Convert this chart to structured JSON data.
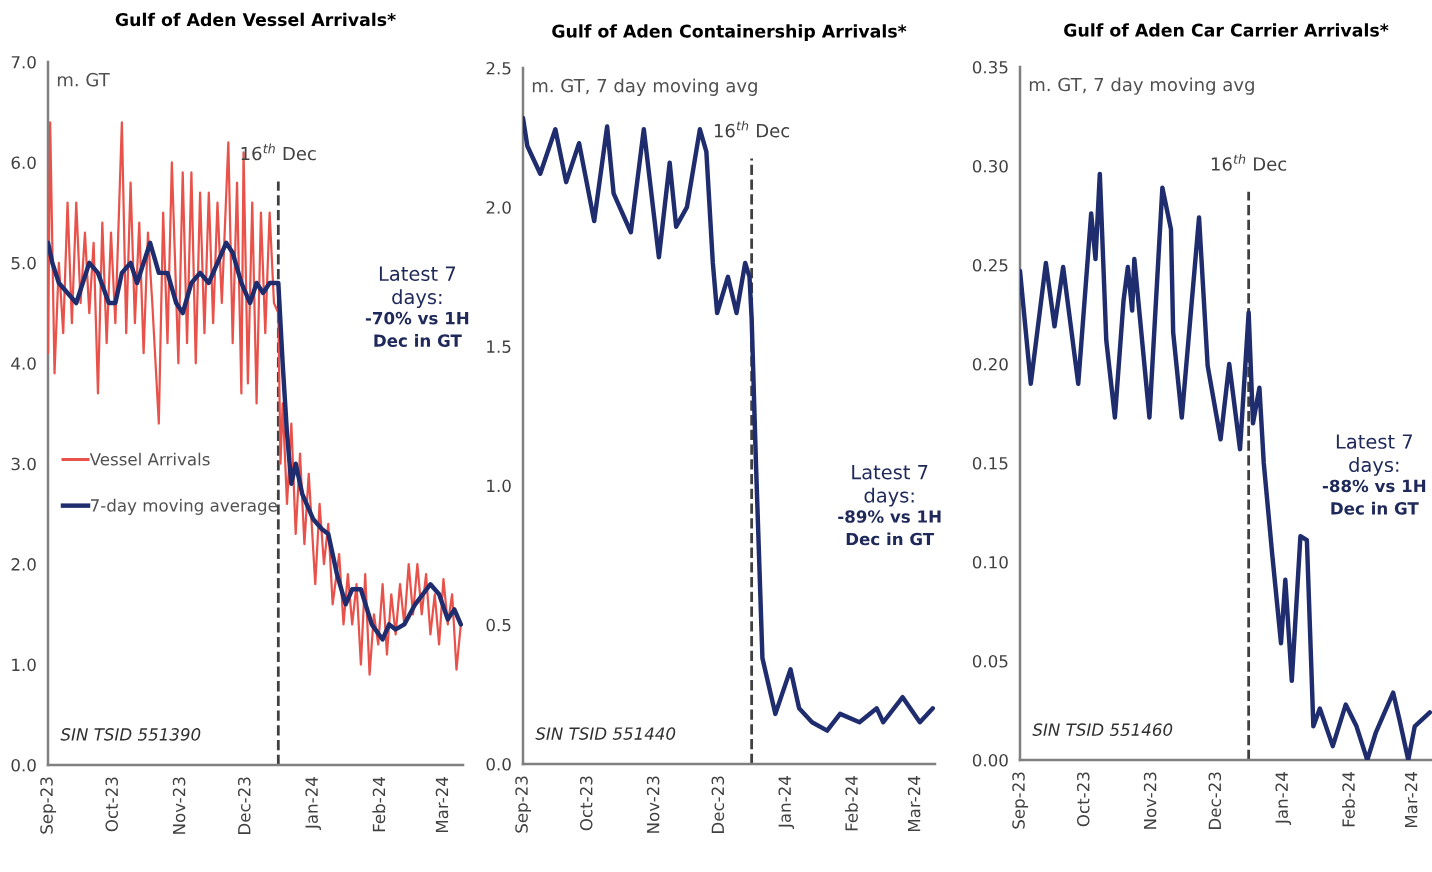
{
  "chart_data": [
    {
      "type": "line",
      "title": "Gulf of Aden Vessel Arrivals*",
      "ylabel": "m. GT",
      "legend": "center left",
      "grid": false,
      "xlim": [
        "2023-09-01",
        "2024-03-10"
      ],
      "xticks": [
        {
          "value": "2023-09-01",
          "label": "Sep-23"
        },
        {
          "value": "2023-10-01",
          "label": "Oct-23"
        },
        {
          "value": "2023-11-01",
          "label": "Nov-23"
        },
        {
          "value": "2023-12-01",
          "label": "Dec-23"
        },
        {
          "value": "2024-01-01",
          "label": "Jan-24"
        },
        {
          "value": "2024-02-01",
          "label": "Feb-24"
        },
        {
          "value": "2024-03-01",
          "label": "Mar-24"
        }
      ],
      "ylim": [
        0,
        7
      ],
      "yticks": [
        {
          "value": 0,
          "label": "0.0"
        },
        {
          "value": 1,
          "label": "1.0"
        },
        {
          "value": 2,
          "label": "2.0"
        },
        {
          "value": 3,
          "label": "3.0"
        },
        {
          "value": 4,
          "label": "4.0"
        },
        {
          "value": 5,
          "label": "5.0"
        },
        {
          "value": 6,
          "label": "6.0"
        },
        {
          "value": 7,
          "label": "7.0"
        }
      ],
      "ref_lines": [
        {
          "axis": "x",
          "value": "2023-12-16",
          "label": "16$^{th}$ Dec",
          "line_style": "dashed",
          "color": "#404040"
        }
      ],
      "annotations": [
        "Latest 7\ndays:",
        "-70% vs 1H\nDec in GT",
        "SIN TSID 551390"
      ],
      "series": [
        {
          "name": "Vessel Arrivals",
          "color": "#e8524a",
          "x": [
            "2023-09-01",
            "2023-09-02",
            "2023-09-04",
            "2023-09-06",
            "2023-09-08",
            "2023-09-10",
            "2023-09-12",
            "2023-09-14",
            "2023-09-16",
            "2023-09-18",
            "2023-09-20",
            "2023-09-22",
            "2023-09-24",
            "2023-09-26",
            "2023-09-28",
            "2023-09-30",
            "2023-10-02",
            "2023-10-05",
            "2023-10-07",
            "2023-10-09",
            "2023-10-11",
            "2023-10-13",
            "2023-10-15",
            "2023-10-17",
            "2023-10-19",
            "2023-10-22",
            "2023-10-24",
            "2023-10-26",
            "2023-10-28",
            "2023-10-31",
            "2023-11-02",
            "2023-11-04",
            "2023-11-06",
            "2023-11-08",
            "2023-11-10",
            "2023-11-12",
            "2023-11-14",
            "2023-11-16",
            "2023-11-18",
            "2023-11-20",
            "2023-11-23",
            "2023-11-25",
            "2023-11-27",
            "2023-11-29",
            "2023-11-30",
            "2023-12-02",
            "2023-12-04",
            "2023-12-06",
            "2023-12-08",
            "2023-12-10",
            "2023-12-12",
            "2023-12-14",
            "2023-12-16",
            "2023-12-17",
            "2023-12-18",
            "2023-12-20",
            "2023-12-22",
            "2023-12-24",
            "2023-12-26",
            "2023-12-28",
            "2023-12-30",
            "2024-01-02",
            "2024-01-04",
            "2024-01-06",
            "2024-01-08",
            "2024-01-10",
            "2024-01-13",
            "2024-01-15",
            "2024-01-17",
            "2024-01-19",
            "2024-01-21",
            "2024-01-23",
            "2024-01-25",
            "2024-01-27",
            "2024-01-29",
            "2024-01-31",
            "2024-02-02",
            "2024-02-04",
            "2024-02-06",
            "2024-02-08",
            "2024-02-10",
            "2024-02-12",
            "2024-02-14",
            "2024-02-16",
            "2024-02-18",
            "2024-02-20",
            "2024-02-22",
            "2024-02-24",
            "2024-02-26",
            "2024-02-28",
            "2024-03-01",
            "2024-03-03",
            "2024-03-05",
            "2024-03-07",
            "2024-03-09"
          ],
          "values": [
            4.1,
            6.4,
            3.9,
            5.0,
            4.3,
            5.6,
            4.4,
            5.6,
            4.6,
            5.3,
            4.5,
            5.2,
            3.7,
            5.4,
            4.2,
            5.3,
            4.4,
            6.4,
            4.3,
            5.8,
            4.4,
            5.4,
            4.1,
            5.3,
            4.6,
            3.4,
            5.5,
            4.2,
            6.0,
            4.0,
            5.9,
            4.2,
            5.9,
            4.0,
            5.7,
            4.3,
            5.7,
            4.4,
            5.6,
            4.6,
            6.2,
            4.2,
            5.8,
            3.7,
            6.1,
            3.8,
            5.6,
            3.6,
            5.5,
            4.3,
            5.5,
            4.6,
            4.5,
            3.0,
            3.6,
            2.6,
            3.4,
            2.3,
            3.1,
            2.2,
            2.9,
            1.8,
            2.6,
            2.0,
            2.4,
            1.6,
            2.1,
            1.4,
            1.9,
            1.4,
            1.8,
            1.0,
            1.9,
            0.9,
            1.5,
            1.2,
            1.8,
            1.1,
            1.7,
            1.3,
            1.8,
            1.4,
            2.0,
            1.5,
            2.0,
            1.5,
            1.9,
            1.3,
            1.7,
            1.2,
            1.85,
            1.4,
            1.7,
            0.95,
            1.4
          ]
        },
        {
          "name": "7-day moving average",
          "color": "#1f2d6e",
          "x": [
            "2023-09-01",
            "2023-09-03",
            "2023-09-06",
            "2023-09-10",
            "2023-09-14",
            "2023-09-17",
            "2023-09-20",
            "2023-09-24",
            "2023-09-29",
            "2023-10-02",
            "2023-10-05",
            "2023-10-09",
            "2023-10-12",
            "2023-10-15",
            "2023-10-18",
            "2023-10-22",
            "2023-10-26",
            "2023-10-30",
            "2023-11-02",
            "2023-11-06",
            "2023-11-10",
            "2023-11-14",
            "2023-11-18",
            "2023-11-22",
            "2023-11-25",
            "2023-11-29",
            "2023-12-03",
            "2023-12-06",
            "2023-12-09",
            "2023-12-12",
            "2023-12-16",
            "2023-12-18",
            "2023-12-20",
            "2023-12-22",
            "2023-12-24",
            "2023-12-27",
            "2024-01-01",
            "2024-01-05",
            "2024-01-08",
            "2024-01-12",
            "2024-01-16",
            "2024-01-19",
            "2024-01-23",
            "2024-01-28",
            "2024-02-02",
            "2024-02-05",
            "2024-02-08",
            "2024-02-12",
            "2024-02-17",
            "2024-02-24",
            "2024-02-28",
            "2024-03-03",
            "2024-03-06",
            "2024-03-09"
          ],
          "values": [
            5.2,
            5.0,
            4.8,
            4.7,
            4.6,
            4.8,
            5.0,
            4.9,
            4.6,
            4.6,
            4.9,
            5.0,
            4.8,
            5.0,
            5.2,
            4.9,
            4.9,
            4.6,
            4.5,
            4.8,
            4.9,
            4.8,
            5.0,
            5.2,
            5.1,
            4.8,
            4.6,
            4.8,
            4.7,
            4.8,
            4.8,
            4.0,
            3.3,
            2.8,
            3.0,
            2.7,
            2.45,
            2.35,
            2.3,
            1.9,
            1.6,
            1.75,
            1.75,
            1.4,
            1.25,
            1.4,
            1.35,
            1.4,
            1.6,
            1.8,
            1.7,
            1.45,
            1.55,
            1.4
          ]
        }
      ]
    },
    {
      "type": "line",
      "title": "Gulf of Aden Containership Arrivals*",
      "ylabel": "m. GT, 7 day moving avg",
      "grid": false,
      "xlim": [
        "2023-09-01",
        "2024-03-10"
      ],
      "xticks": [
        {
          "value": "2023-09-01",
          "label": "Sep-23"
        },
        {
          "value": "2023-10-01",
          "label": "Oct-23"
        },
        {
          "value": "2023-11-01",
          "label": "Nov-23"
        },
        {
          "value": "2023-12-01",
          "label": "Dec-23"
        },
        {
          "value": "2024-01-01",
          "label": "Jan-24"
        },
        {
          "value": "2024-02-01",
          "label": "Feb-24"
        },
        {
          "value": "2024-03-01",
          "label": "Mar-24"
        }
      ],
      "ylim": [
        0,
        2.5
      ],
      "yticks": [
        {
          "value": 0,
          "label": "0.0"
        },
        {
          "value": 0.5,
          "label": "0.5"
        },
        {
          "value": 1,
          "label": "1.0"
        },
        {
          "value": 1.5,
          "label": "1.5"
        },
        {
          "value": 2,
          "label": "2.0"
        },
        {
          "value": 2.5,
          "label": "2.5"
        }
      ],
      "ref_lines": [
        {
          "axis": "x",
          "value": "2023-12-16",
          "label": "16$^{th}$ Dec",
          "line_style": "dashed",
          "color": "#404040"
        }
      ],
      "annotations": [
        "Latest 7\ndays:",
        "-89% vs 1H\nDec in GT",
        "SIN TSID 551440"
      ],
      "series": [
        {
          "color": "#1f2d6e",
          "x": [
            "2023-09-01",
            "2023-09-03",
            "2023-09-09",
            "2023-09-16",
            "2023-09-21",
            "2023-09-27",
            "2023-10-04",
            "2023-10-10",
            "2023-10-13",
            "2023-10-21",
            "2023-10-27",
            "2023-11-03",
            "2023-11-08",
            "2023-11-11",
            "2023-11-16",
            "2023-11-22",
            "2023-11-25",
            "2023-11-28",
            "2023-11-30",
            "2023-12-05",
            "2023-12-09",
            "2023-12-13",
            "2023-12-15",
            "2023-12-16",
            "2023-12-18",
            "2023-12-21",
            "2023-12-27",
            "2024-01-03",
            "2024-01-07",
            "2024-01-13",
            "2024-01-20",
            "2024-01-26",
            "2024-02-04",
            "2024-02-12",
            "2024-02-15",
            "2024-02-24",
            "2024-03-03",
            "2024-03-09"
          ],
          "values": [
            2.32,
            2.22,
            2.12,
            2.28,
            2.09,
            2.23,
            1.95,
            2.29,
            2.05,
            1.91,
            2.28,
            1.82,
            2.16,
            1.93,
            2.0,
            2.28,
            2.2,
            1.8,
            1.62,
            1.75,
            1.62,
            1.8,
            1.75,
            1.6,
            1.08,
            0.38,
            0.18,
            0.34,
            0.2,
            0.15,
            0.12,
            0.18,
            0.15,
            0.2,
            0.15,
            0.24,
            0.15,
            0.2
          ]
        }
      ]
    },
    {
      "type": "line",
      "title": "Gulf of Aden Car Carrier Arrivals*",
      "ylabel": "m. GT, 7 day moving avg",
      "grid": false,
      "xlim": [
        "2023-09-01",
        "2024-03-10"
      ],
      "xticks": [
        {
          "value": "2023-09-01",
          "label": "Sep-23"
        },
        {
          "value": "2023-10-01",
          "label": "Oct-23"
        },
        {
          "value": "2023-11-01",
          "label": "Nov-23"
        },
        {
          "value": "2023-12-01",
          "label": "Dec-23"
        },
        {
          "value": "2024-01-01",
          "label": "Jan-24"
        },
        {
          "value": "2024-02-01",
          "label": "Feb-24"
        },
        {
          "value": "2024-03-01",
          "label": "Mar-24"
        }
      ],
      "ylim": [
        0,
        0.35
      ],
      "yticks": [
        {
          "value": 0,
          "label": "0.00"
        },
        {
          "value": 0.05,
          "label": "0.05"
        },
        {
          "value": 0.1,
          "label": "0.10"
        },
        {
          "value": 0.15,
          "label": "0.15"
        },
        {
          "value": 0.2,
          "label": "0.20"
        },
        {
          "value": 0.25,
          "label": "0.25"
        },
        {
          "value": 0.3,
          "label": "0.30"
        },
        {
          "value": 0.35,
          "label": "0.35"
        }
      ],
      "ref_lines": [
        {
          "axis": "x",
          "value": "2023-12-16",
          "label": "16$^{th}$ Dec",
          "line_style": "dashed",
          "color": "#404040"
        }
      ],
      "annotations": [
        "Latest 7\ndays:",
        "-88% vs 1H\nDec in GT",
        "SIN TSID 551460"
      ],
      "series": [
        {
          "color": "#1f2d6e",
          "x": [
            "2023-09-01",
            "2023-09-06",
            "2023-09-13",
            "2023-09-17",
            "2023-09-21",
            "2023-09-28",
            "2023-10-04",
            "2023-10-06",
            "2023-10-08",
            "2023-10-11",
            "2023-10-15",
            "2023-10-19",
            "2023-10-21",
            "2023-10-23",
            "2023-10-24",
            "2023-10-31",
            "2023-11-06",
            "2023-11-10",
            "2023-11-11",
            "2023-11-15",
            "2023-11-23",
            "2023-11-27",
            "2023-12-03",
            "2023-12-07",
            "2023-12-12",
            "2023-12-16",
            "2023-12-18",
            "2023-12-21",
            "2023-12-23",
            "2023-12-27",
            "2023-12-31",
            "2024-01-02",
            "2024-01-05",
            "2024-01-09",
            "2024-01-12",
            "2024-01-15",
            "2024-01-18",
            "2024-01-24",
            "2024-01-30",
            "2024-02-04",
            "2024-02-09",
            "2024-02-13",
            "2024-02-21",
            "2024-02-24",
            "2024-02-28",
            "2024-03-02",
            "2024-03-09"
          ],
          "values": [
            0.247,
            0.19,
            0.251,
            0.219,
            0.249,
            0.19,
            0.276,
            0.253,
            0.296,
            0.212,
            0.173,
            0.232,
            0.249,
            0.227,
            0.253,
            0.173,
            0.289,
            0.268,
            0.216,
            0.173,
            0.274,
            0.199,
            0.162,
            0.2,
            0.157,
            0.226,
            0.17,
            0.188,
            0.15,
            0.103,
            0.059,
            0.091,
            0.04,
            0.113,
            0.111,
            0.017,
            0.026,
            0.007,
            0.028,
            0.017,
            0.0,
            0.014,
            0.034,
            0.02,
            0.0,
            0.017,
            0.024
          ]
        }
      ]
    }
  ]
}
